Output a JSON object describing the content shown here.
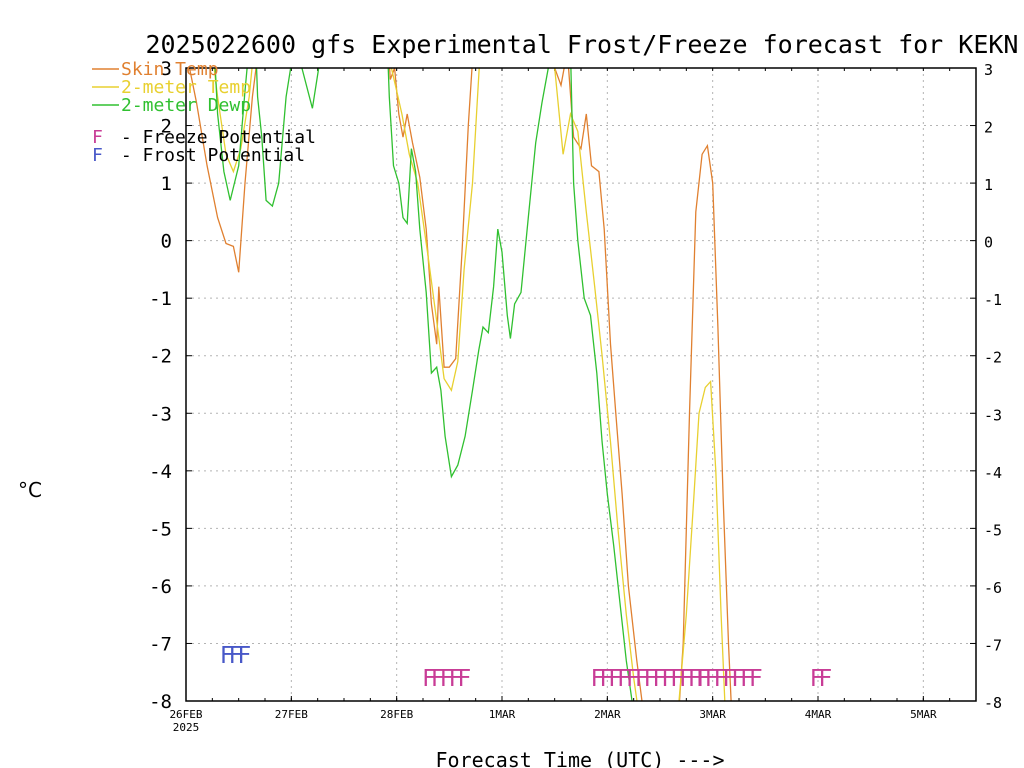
{
  "chart_data": {
    "type": "line",
    "title": "2025022600 gfs Experimental Frost/Freeze forecast for KEKN",
    "ylabel": "°C",
    "xlabel": "Forecast Time (UTC) --->",
    "ylim": [
      -8,
      3
    ],
    "xlim": [
      0,
      7.5
    ],
    "y_ticks": [
      -8,
      -7,
      -6,
      -5,
      -4,
      -3,
      -2,
      -1,
      0,
      1,
      2,
      3
    ],
    "x_ticks": [
      {
        "x": 0,
        "label": "26FEB",
        "sublabel": "2025"
      },
      {
        "x": 1,
        "label": "27FEB"
      },
      {
        "x": 2,
        "label": "28FEB"
      },
      {
        "x": 3,
        "label": "1MAR"
      },
      {
        "x": 4,
        "label": "2MAR"
      },
      {
        "x": 5,
        "label": "3MAR"
      },
      {
        "x": 6,
        "label": "4MAR"
      },
      {
        "x": 7,
        "label": "5MAR"
      }
    ],
    "grid": true,
    "legend_position": "top-left",
    "series": [
      {
        "name": "Skin Temp",
        "color": "#e08030",
        "points": [
          [
            0,
            3.3
          ],
          [
            0.1,
            2.4
          ],
          [
            0.2,
            1.3
          ],
          [
            0.3,
            0.4
          ],
          [
            0.38,
            -0.05
          ],
          [
            0.45,
            -0.1
          ],
          [
            0.5,
            -0.55
          ],
          [
            0.56,
            1.0
          ],
          [
            0.63,
            2.5
          ],
          [
            0.7,
            3.5
          ],
          [
            1.0,
            4
          ],
          [
            1.9,
            4
          ],
          [
            1.94,
            2.8
          ],
          [
            1.98,
            3.0
          ],
          [
            2.02,
            2.2
          ],
          [
            2.06,
            1.8
          ],
          [
            2.1,
            2.2
          ],
          [
            2.15,
            1.7
          ],
          [
            2.22,
            1.1
          ],
          [
            2.28,
            0.2
          ],
          [
            2.33,
            -1.1
          ],
          [
            2.38,
            -1.8
          ],
          [
            2.4,
            -0.8
          ],
          [
            2.45,
            -2.2
          ],
          [
            2.5,
            -2.2
          ],
          [
            2.56,
            -2.05
          ],
          [
            2.62,
            -0.2
          ],
          [
            2.68,
            2.0
          ],
          [
            2.75,
            4
          ],
          [
            3.45,
            4
          ],
          [
            3.5,
            3.0
          ],
          [
            3.56,
            2.7
          ],
          [
            3.62,
            3.3
          ],
          [
            3.68,
            1.8
          ],
          [
            3.75,
            1.6
          ],
          [
            3.8,
            2.2
          ],
          [
            3.85,
            1.3
          ],
          [
            3.92,
            1.2
          ],
          [
            3.97,
            0.2
          ],
          [
            4.03,
            -1.8
          ],
          [
            4.08,
            -3.0
          ],
          [
            4.14,
            -4.4
          ],
          [
            4.2,
            -6.0
          ],
          [
            4.28,
            -7.3
          ],
          [
            4.35,
            -8.3
          ],
          [
            4.5,
            -9
          ],
          [
            4.65,
            -9
          ],
          [
            4.72,
            -7.0
          ],
          [
            4.78,
            -3.0
          ],
          [
            4.84,
            0.5
          ],
          [
            4.9,
            1.5
          ],
          [
            4.95,
            1.65
          ],
          [
            5.0,
            1.0
          ],
          [
            5.05,
            -1.5
          ],
          [
            5.1,
            -4.5
          ],
          [
            5.15,
            -7.0
          ],
          [
            5.2,
            -9
          ]
        ]
      },
      {
        "name": "2-meter Temp",
        "color": "#e8d030",
        "points": [
          [
            0.2,
            4
          ],
          [
            0.3,
            2.5
          ],
          [
            0.38,
            1.5
          ],
          [
            0.45,
            1.2
          ],
          [
            0.52,
            1.6
          ],
          [
            0.6,
            2.5
          ],
          [
            0.68,
            4
          ],
          [
            1.9,
            4
          ],
          [
            1.95,
            3.0
          ],
          [
            2.0,
            2.6
          ],
          [
            2.05,
            2.2
          ],
          [
            2.12,
            1.5
          ],
          [
            2.2,
            1.0
          ],
          [
            2.3,
            -0.3
          ],
          [
            2.38,
            -1.4
          ],
          [
            2.45,
            -2.4
          ],
          [
            2.52,
            -2.6
          ],
          [
            2.58,
            -2.1
          ],
          [
            2.64,
            -0.5
          ],
          [
            2.72,
            1.0
          ],
          [
            2.8,
            3.5
          ],
          [
            2.85,
            4
          ],
          [
            3.4,
            4
          ],
          [
            3.5,
            3.0
          ],
          [
            3.58,
            1.5
          ],
          [
            3.65,
            2.2
          ],
          [
            3.72,
            1.9
          ],
          [
            3.8,
            0.5
          ],
          [
            3.88,
            -0.8
          ],
          [
            3.95,
            -2.0
          ],
          [
            4.03,
            -3.5
          ],
          [
            4.1,
            -5.0
          ],
          [
            4.18,
            -6.5
          ],
          [
            4.25,
            -7.6
          ],
          [
            4.32,
            -8.5
          ],
          [
            4.45,
            -9
          ],
          [
            4.6,
            -9
          ],
          [
            4.68,
            -8.0
          ],
          [
            4.75,
            -6.5
          ],
          [
            4.82,
            -4.5
          ],
          [
            4.87,
            -3.0
          ],
          [
            4.93,
            -2.55
          ],
          [
            4.98,
            -2.45
          ],
          [
            5.03,
            -4.0
          ],
          [
            5.08,
            -6.5
          ],
          [
            5.12,
            -8.2
          ],
          [
            5.2,
            -9
          ]
        ]
      },
      {
        "name": "2-meter Dewp",
        "color": "#30c030",
        "points": [
          [
            0.25,
            4
          ],
          [
            0.3,
            2.2
          ],
          [
            0.36,
            1.2
          ],
          [
            0.42,
            0.7
          ],
          [
            0.5,
            1.3
          ],
          [
            0.56,
            2.6
          ],
          [
            0.62,
            3.8
          ],
          [
            0.65,
            4
          ],
          [
            0.68,
            2.5
          ],
          [
            0.72,
            1.8
          ],
          [
            0.76,
            0.7
          ],
          [
            0.82,
            0.6
          ],
          [
            0.88,
            1.0
          ],
          [
            0.95,
            2.5
          ],
          [
            1.02,
            3.3
          ],
          [
            1.1,
            3.0
          ],
          [
            1.2,
            2.3
          ],
          [
            1.26,
            3.0
          ],
          [
            1.3,
            4
          ],
          [
            1.9,
            4
          ],
          [
            1.93,
            2.5
          ],
          [
            1.97,
            1.3
          ],
          [
            2.02,
            1.0
          ],
          [
            2.06,
            0.4
          ],
          [
            2.1,
            0.3
          ],
          [
            2.14,
            1.6
          ],
          [
            2.18,
            1.2
          ],
          [
            2.22,
            0.2
          ],
          [
            2.28,
            -0.9
          ],
          [
            2.33,
            -2.3
          ],
          [
            2.38,
            -2.2
          ],
          [
            2.42,
            -2.6
          ],
          [
            2.46,
            -3.4
          ],
          [
            2.52,
            -4.1
          ],
          [
            2.58,
            -3.9
          ],
          [
            2.65,
            -3.4
          ],
          [
            2.72,
            -2.6
          ],
          [
            2.78,
            -1.9
          ],
          [
            2.82,
            -1.5
          ],
          [
            2.87,
            -1.6
          ],
          [
            2.92,
            -0.8
          ],
          [
            2.96,
            0.2
          ],
          [
            3.0,
            -0.2
          ],
          [
            3.05,
            -1.3
          ],
          [
            3.08,
            -1.7
          ],
          [
            3.12,
            -1.1
          ],
          [
            3.18,
            -0.9
          ],
          [
            3.25,
            0.4
          ],
          [
            3.32,
            1.7
          ],
          [
            3.38,
            2.4
          ],
          [
            3.44,
            3.0
          ],
          [
            3.5,
            4
          ],
          [
            3.62,
            4
          ],
          [
            3.65,
            3.3
          ],
          [
            3.68,
            1.0
          ],
          [
            3.72,
            0.0
          ],
          [
            3.78,
            -1.0
          ],
          [
            3.84,
            -1.3
          ],
          [
            3.9,
            -2.3
          ],
          [
            3.95,
            -3.5
          ],
          [
            4.0,
            -4.4
          ],
          [
            4.06,
            -5.3
          ],
          [
            4.12,
            -6.3
          ],
          [
            4.18,
            -7.3
          ],
          [
            4.25,
            -8.2
          ],
          [
            4.32,
            -9
          ]
        ]
      }
    ],
    "annotations": [
      {
        "text": "FFF",
        "kind": "Frost Potential",
        "color": "#4858c8",
        "x": 0.32,
        "y": -7.2
      },
      {
        "text": "FFFFF",
        "kind": "Freeze Potential",
        "color": "#c83c96",
        "x": 2.24,
        "y": -7.6
      },
      {
        "text": "FFFFFFFFFFFFF",
        "kind": "Freeze Potential",
        "color": "#c83c96",
        "x": 3.84,
        "y": -7.6
      },
      {
        "text": "FFFFFFF",
        "kind": "Freeze Potential",
        "color": "#c83c96",
        "x": 4.84,
        "y": -7.6
      },
      {
        "text": "FF",
        "kind": "Freeze Potential",
        "color": "#c83c96",
        "x": 5.92,
        "y": -7.6
      }
    ]
  },
  "legend": {
    "items": [
      {
        "label": "Skin Temp",
        "color": "#e08030"
      },
      {
        "label": "2-meter Temp",
        "color": "#e8d030"
      },
      {
        "label": "2-meter Dewp",
        "color": "#30c030"
      }
    ],
    "freeze_letter": "F",
    "freeze_label": " - Freeze Potential",
    "freeze_color": "#c83c96",
    "frost_letter": "F",
    "frost_label": " - Frost Potential",
    "frost_color": "#4858c8"
  }
}
